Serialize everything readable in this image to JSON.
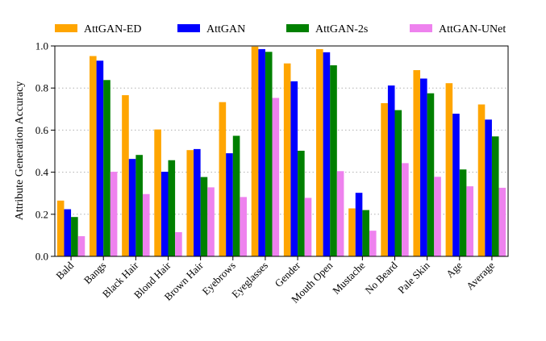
{
  "chart_data": {
    "type": "bar",
    "title": "",
    "xlabel": "",
    "ylabel": "Attribute Generation Accuracy",
    "ylim": [
      0,
      1.0
    ],
    "yticks": [
      "0.0",
      "0.2",
      "0.4",
      "0.6",
      "0.8",
      "1.0"
    ],
    "grid": "horizontal dotted",
    "legend_position": "top",
    "categories": [
      "Bald",
      "Bangs",
      "Black Hair",
      "Blond Hair",
      "Brown Hair",
      "Eyebrows",
      "Eyeglasses",
      "Gender",
      "Mouth Open",
      "Mustache",
      "No Beard",
      "Pale Skin",
      "Age",
      "Average"
    ],
    "series": [
      {
        "name": "AttGAN-ED",
        "color": "#ffa500",
        "values": [
          0.265,
          0.952,
          0.766,
          0.603,
          0.505,
          0.733,
          0.997,
          0.917,
          0.985,
          0.228,
          0.728,
          0.885,
          0.823,
          0.722
        ]
      },
      {
        "name": "AttGAN",
        "color": "#0000ff",
        "values": [
          0.224,
          0.93,
          0.463,
          0.402,
          0.51,
          0.49,
          0.985,
          0.832,
          0.97,
          0.302,
          0.812,
          0.845,
          0.678,
          0.65
        ]
      },
      {
        "name": "AttGAN-2s",
        "color": "#008000",
        "values": [
          0.187,
          0.838,
          0.482,
          0.457,
          0.377,
          0.573,
          0.972,
          0.502,
          0.908,
          0.22,
          0.695,
          0.775,
          0.413,
          0.57
        ]
      },
      {
        "name": "AttGAN-UNet",
        "color": "#ee82ee",
        "values": [
          0.096,
          0.402,
          0.296,
          0.115,
          0.328,
          0.282,
          0.753,
          0.278,
          0.405,
          0.122,
          0.443,
          0.378,
          0.333,
          0.326
        ]
      }
    ]
  }
}
